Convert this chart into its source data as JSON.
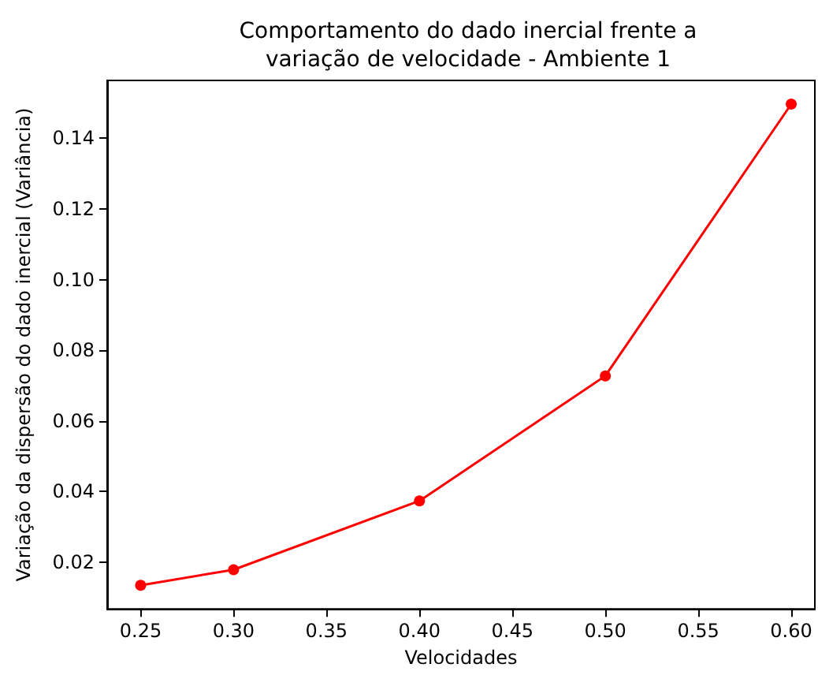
{
  "chart_data": {
    "type": "line",
    "title": "Comportamento do dado inercial frente a\nvariação de velocidade - Ambiente 1",
    "xlabel": "Velocidades",
    "ylabel": "Variação da dispersão do dado inercial (Variância)",
    "x": [
      0.25,
      0.3,
      0.4,
      0.5,
      0.6
    ],
    "series": [
      {
        "color": "#ff0000",
        "values": [
          0.0134,
          0.0178,
          0.0373,
          0.0727,
          0.1497
        ]
      }
    ],
    "xlim": [
      0.232,
      0.6127
    ],
    "ylim": [
      0.0067,
      0.1564
    ],
    "xticks": [
      {
        "value": 0.25,
        "label": "0.25"
      },
      {
        "value": 0.3,
        "label": "0.30"
      },
      {
        "value": 0.35,
        "label": "0.35"
      },
      {
        "value": 0.4,
        "label": "0.40"
      },
      {
        "value": 0.45,
        "label": "0.45"
      },
      {
        "value": 0.5,
        "label": "0.50"
      },
      {
        "value": 0.55,
        "label": "0.55"
      },
      {
        "value": 0.6,
        "label": "0.60"
      }
    ],
    "yticks": [
      {
        "value": 0.02,
        "label": "0.02"
      },
      {
        "value": 0.04,
        "label": "0.04"
      },
      {
        "value": 0.06,
        "label": "0.06"
      },
      {
        "value": 0.08,
        "label": "0.08"
      },
      {
        "value": 0.1,
        "label": "0.10"
      },
      {
        "value": 0.12,
        "label": "0.12"
      },
      {
        "value": 0.14,
        "label": "0.14"
      }
    ],
    "grid": false,
    "marker": "circle",
    "line_style": "solid"
  }
}
